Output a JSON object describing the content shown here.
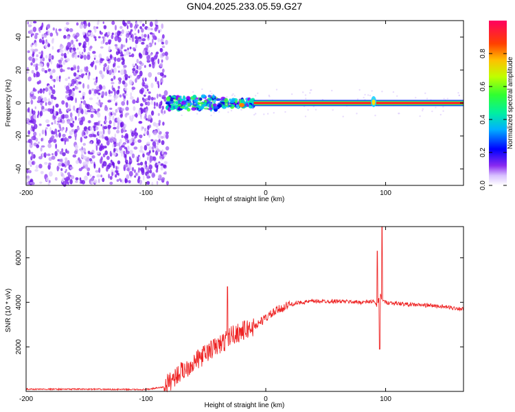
{
  "title": "GN04.2025.233.05.59.G27",
  "colors": {
    "snr_line": "#ee2222",
    "noise_purple": "#7a22ee",
    "colormap": [
      "#ffffff",
      "#e8d8ff",
      "#7a00ff",
      "#0000ff",
      "#00c8ff",
      "#00ff80",
      "#80ff00",
      "#ffd000",
      "#ff4000",
      "#ff0070"
    ]
  },
  "chart_data": [
    {
      "type": "heatmap",
      "xlabel": "Height of straight line (km)",
      "ylabel": "Frequency (Hz)",
      "xlim": [
        -200,
        165
      ],
      "ylim": [
        -50,
        50
      ],
      "xticks": [
        -200,
        -100,
        0,
        100
      ],
      "yticks": [
        -40,
        -20,
        0,
        20,
        40
      ],
      "colorbar": {
        "label": "Normalized spectral amplitude",
        "range": [
          0,
          1
        ],
        "ticks": [
          "0.0",
          "0.2",
          "0.4",
          "0.6",
          "0.8"
        ]
      },
      "regions": [
        {
          "from": -200,
          "to": -82,
          "description_values": "noise",
          "amplitude": 0.1
        },
        {
          "from": -82,
          "to": -40,
          "center_freq": 0,
          "amplitude": 0.3
        },
        {
          "from": -40,
          "to": -10,
          "center_freq": 0,
          "amplitude": 0.6
        },
        {
          "from": -10,
          "to": 165,
          "center_freq": 0,
          "amplitude": 0.95
        }
      ]
    },
    {
      "type": "line",
      "xlabel": "Height of straight line (km)",
      "ylabel": "SNR (10 * v/v)",
      "xlim": [
        -200,
        165
      ],
      "ylim": [
        0,
        7400
      ],
      "xticks": [
        -200,
        -100,
        0,
        100
      ],
      "yticks": [
        2000,
        4000,
        6000
      ],
      "series": [
        {
          "x": [
            -200,
            -150,
            -100,
            -85,
            -75,
            -65,
            -55,
            -45,
            -35,
            -30,
            -20,
            -10,
            0,
            10,
            20,
            30,
            40,
            60,
            80,
            90,
            93,
            95,
            97,
            100,
            120,
            140,
            165
          ],
          "y": [
            100,
            100,
            80,
            200,
            700,
            1100,
            1500,
            1900,
            2200,
            2500,
            2700,
            2900,
            3300,
            3650,
            3900,
            4000,
            4050,
            4050,
            4000,
            4050,
            3800,
            4400,
            4100,
            4000,
            3900,
            3850,
            3700
          ],
          "spikes": [
            {
              "x": -32,
              "y": 4700
            },
            {
              "x": 93,
              "y": 6300
            },
            {
              "x": 95,
              "y": 1900
            },
            {
              "x": 97,
              "y": 7400
            }
          ]
        }
      ]
    }
  ]
}
